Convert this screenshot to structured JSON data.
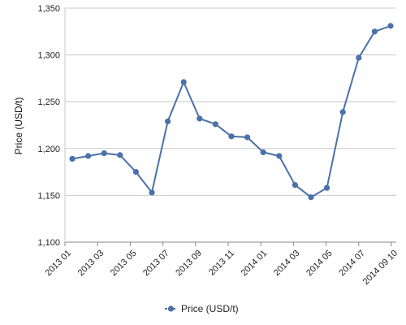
{
  "chart_data": {
    "type": "line",
    "ylabel": "Price (USD/t)",
    "ylim": [
      1100,
      1350
    ],
    "yticks": [
      1100,
      1150,
      1200,
      1250,
      1300,
      1350
    ],
    "ytick_labels": [
      "1,100",
      "1,150",
      "1,200",
      "1,250",
      "1,300",
      "1,350"
    ],
    "grid": "horizontal",
    "legend_position": "bottom",
    "x_labels": [
      "2013 01",
      "2013 03",
      "2013 05",
      "2013 07",
      "2013 09",
      "2013 11",
      "2014 01",
      "2014 03",
      "2014 05",
      "2014 07",
      "2014 09 10"
    ],
    "series": [
      {
        "name": "Price (USD/t)",
        "color": "#4a72a8",
        "values": [
          1189,
          1192,
          1195,
          1193,
          1175,
          1153,
          1229,
          1271,
          1232,
          1226,
          1213,
          1212,
          1196,
          1192,
          1161,
          1148,
          1158,
          1239,
          1297,
          1325,
          1331
        ]
      }
    ]
  }
}
